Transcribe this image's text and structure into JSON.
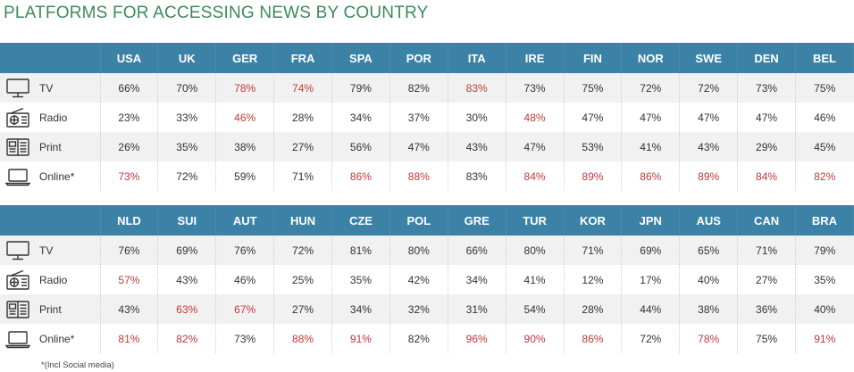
{
  "title": "PLATFORMS FOR ACCESSING NEWS BY COUNTRY",
  "footnote": "*(Incl Social media)",
  "colors": {
    "header": "#3c82a7",
    "highlight": "#c1383a",
    "title": "#3d8a5a"
  },
  "platforms": [
    {
      "label": "TV",
      "icon": "tv-icon"
    },
    {
      "label": "Radio",
      "icon": "radio-icon"
    },
    {
      "label": "Print",
      "icon": "newspaper-icon"
    },
    {
      "label": "Online*",
      "icon": "laptop-icon"
    }
  ],
  "chart_data": {
    "type": "table",
    "title": "PLATFORMS FOR ACCESSING NEWS BY COUNTRY",
    "tables": [
      {
        "countries": [
          "USA",
          "UK",
          "GER",
          "FRA",
          "SPA",
          "POR",
          "ITA",
          "IRE",
          "FIN",
          "NOR",
          "SWE",
          "DEN",
          "BEL"
        ],
        "rows": [
          {
            "platform": "TV",
            "values": [
              "66%",
              "70%",
              "78%",
              "74%",
              "79%",
              "82%",
              "83%",
              "73%",
              "75%",
              "72%",
              "72%",
              "73%",
              "75%"
            ],
            "highlight": [
              false,
              false,
              true,
              true,
              false,
              false,
              true,
              false,
              false,
              false,
              false,
              false,
              false
            ]
          },
          {
            "platform": "Radio",
            "values": [
              "23%",
              "33%",
              "46%",
              "28%",
              "34%",
              "37%",
              "30%",
              "48%",
              "47%",
              "47%",
              "47%",
              "47%",
              "46%"
            ],
            "highlight": [
              false,
              false,
              true,
              false,
              false,
              false,
              false,
              true,
              false,
              false,
              false,
              false,
              false
            ]
          },
          {
            "platform": "Print",
            "values": [
              "26%",
              "35%",
              "38%",
              "27%",
              "56%",
              "47%",
              "43%",
              "47%",
              "53%",
              "41%",
              "43%",
              "29%",
              "45%"
            ],
            "highlight": [
              false,
              false,
              false,
              false,
              false,
              false,
              false,
              false,
              false,
              false,
              false,
              false,
              false
            ]
          },
          {
            "platform": "Online*",
            "values": [
              "73%",
              "72%",
              "59%",
              "71%",
              "86%",
              "88%",
              "83%",
              "84%",
              "89%",
              "86%",
              "89%",
              "84%",
              "82%"
            ],
            "highlight": [
              true,
              false,
              false,
              false,
              true,
              true,
              false,
              true,
              true,
              true,
              true,
              true,
              true
            ]
          }
        ]
      },
      {
        "countries": [
          "NLD",
          "SUI",
          "AUT",
          "HUN",
          "CZE",
          "POL",
          "GRE",
          "TUR",
          "KOR",
          "JPN",
          "AUS",
          "CAN",
          "BRA"
        ],
        "rows": [
          {
            "platform": "TV",
            "values": [
              "76%",
              "69%",
              "76%",
              "72%",
              "81%",
              "80%",
              "66%",
              "80%",
              "71%",
              "69%",
              "65%",
              "71%",
              "79%"
            ],
            "highlight": [
              false,
              false,
              false,
              false,
              false,
              false,
              false,
              false,
              false,
              false,
              false,
              false,
              false
            ]
          },
          {
            "platform": "Radio",
            "values": [
              "57%",
              "43%",
              "46%",
              "25%",
              "35%",
              "42%",
              "34%",
              "41%",
              "12%",
              "17%",
              "40%",
              "27%",
              "35%"
            ],
            "highlight": [
              true,
              false,
              false,
              false,
              false,
              false,
              false,
              false,
              false,
              false,
              false,
              false,
              false
            ]
          },
          {
            "platform": "Print",
            "values": [
              "43%",
              "63%",
              "67%",
              "27%",
              "34%",
              "32%",
              "31%",
              "54%",
              "28%",
              "44%",
              "38%",
              "36%",
              "40%"
            ],
            "highlight": [
              false,
              true,
              true,
              false,
              false,
              false,
              false,
              false,
              false,
              false,
              false,
              false,
              false
            ]
          },
          {
            "platform": "Online*",
            "values": [
              "81%",
              "82%",
              "73%",
              "88%",
              "91%",
              "82%",
              "96%",
              "90%",
              "86%",
              "72%",
              "78%",
              "75%",
              "91%"
            ],
            "highlight": [
              true,
              true,
              false,
              true,
              true,
              false,
              true,
              true,
              true,
              false,
              true,
              false,
              true
            ]
          }
        ]
      }
    ]
  }
}
